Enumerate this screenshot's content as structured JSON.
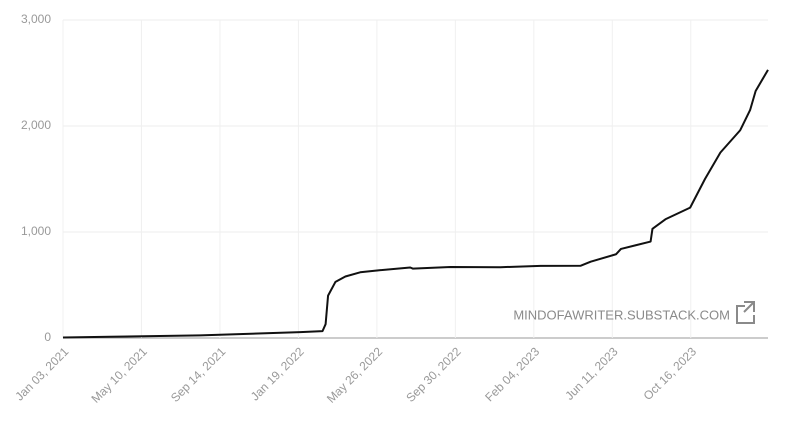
{
  "chart_data": {
    "type": "line",
    "annotation": "MINDOFAWRITER.SUBSTACK.COM",
    "x": [
      "2021-01-03",
      "2021-03-20",
      "2021-08-13",
      "2022-01-22",
      "2022-02-27",
      "2022-03-04",
      "2022-03-08",
      "2022-03-20",
      "2022-04-05",
      "2022-04-29",
      "2022-06-01",
      "2022-07-19",
      "2022-07-23",
      "2022-09-22",
      "2022-12-12",
      "2023-02-15",
      "2023-04-21",
      "2023-05-07",
      "2023-06-17",
      "2023-06-25",
      "2023-08-12",
      "2023-08-15",
      "2023-09-05",
      "2023-10-15",
      "2023-11-08",
      "2023-12-03",
      "2024-01-04",
      "2024-01-20",
      "2024-01-29",
      "2024-02-18"
    ],
    "series": [
      {
        "color": "#111111",
        "values": [
          5,
          12,
          25,
          55,
          65,
          130,
          400,
          530,
          580,
          620,
          640,
          665,
          655,
          670,
          668,
          680,
          682,
          720,
          790,
          840,
          910,
          1030,
          1120,
          1230,
          1500,
          1750,
          1960,
          2150,
          2330,
          2530
        ]
      }
    ],
    "xlim": [
      "2021-01-03",
      "2024-02-18"
    ],
    "xticks": [
      {
        "value": "2021-01-03",
        "label": "Jan 03, 2021"
      },
      {
        "value": "2021-05-10",
        "label": "May 10, 2021"
      },
      {
        "value": "2021-09-14",
        "label": "Sep 14, 2021"
      },
      {
        "value": "2022-01-19",
        "label": "Jan 19, 2022"
      },
      {
        "value": "2022-05-26",
        "label": "May 26, 2022"
      },
      {
        "value": "2022-09-30",
        "label": "Sep 30, 2022"
      },
      {
        "value": "2023-02-04",
        "label": "Feb 04, 2023"
      },
      {
        "value": "2023-06-11",
        "label": "Jun 11, 2023"
      },
      {
        "value": "2023-10-16",
        "label": "Oct 16, 2023"
      }
    ],
    "ylim": [
      0,
      3000
    ],
    "yticks": [
      0,
      {
        "value": 1000,
        "label": "1,000"
      },
      {
        "value": 2000,
        "label": "2,000"
      },
      {
        "value": 3000,
        "label": "3,000"
      }
    ],
    "grid": true
  }
}
